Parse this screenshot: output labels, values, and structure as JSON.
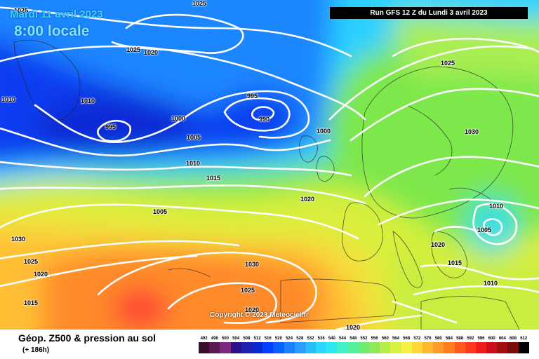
{
  "header": {
    "date": "Mardi 11 avril 2023",
    "time": "8:00 locale",
    "run": "Run GFS 12 Z du Lundi 3 avril 2023"
  },
  "copyright": "Copyright © 2023 Meteociel.fr",
  "footer": {
    "title": "Géop. Z500 & pression au sol",
    "subtitle": "(+ 186h)"
  },
  "pressure_labels": [
    "1025",
    "1025",
    "1025",
    "1020",
    "1010",
    "1010",
    "995",
    "995",
    "990",
    "1000",
    "1005",
    "1010",
    "1015",
    "1000",
    "1025",
    "1030",
    "1020",
    "1005",
    "1030",
    "1025",
    "1020",
    "1015",
    "1030",
    "1025",
    "1020",
    "1020",
    "1010",
    "1005",
    "1020",
    "1015",
    "1010"
  ],
  "scale": {
    "labels": [
      "492",
      "496",
      "500",
      "504",
      "508",
      "512",
      "516",
      "520",
      "524",
      "528",
      "532",
      "536",
      "540",
      "544",
      "548",
      "552",
      "556",
      "560",
      "564",
      "568",
      "572",
      "576",
      "580",
      "584",
      "588",
      "592",
      "596",
      "600",
      "604",
      "608",
      "612"
    ],
    "colors": [
      "#3a0d2e",
      "#5a1a52",
      "#7a2a80",
      "#2e0f8a",
      "#1f1fb3",
      "#0a2ad1",
      "#0040ff",
      "#0a60ff",
      "#1e80ff",
      "#2a9cff",
      "#2bbcff",
      "#2ad8ff",
      "#30e8ef",
      "#40f0c8",
      "#54f09a",
      "#6cec70",
      "#8ee85a",
      "#b6ec4a",
      "#d8f042",
      "#f6f040",
      "#ffd838",
      "#ffb82e",
      "#ff9a28",
      "#ff7e22",
      "#ff5a1e",
      "#ff3a1c",
      "#f01c1c",
      "#cc1016",
      "#a50c12",
      "#7a0a0e",
      "#000000"
    ]
  }
}
